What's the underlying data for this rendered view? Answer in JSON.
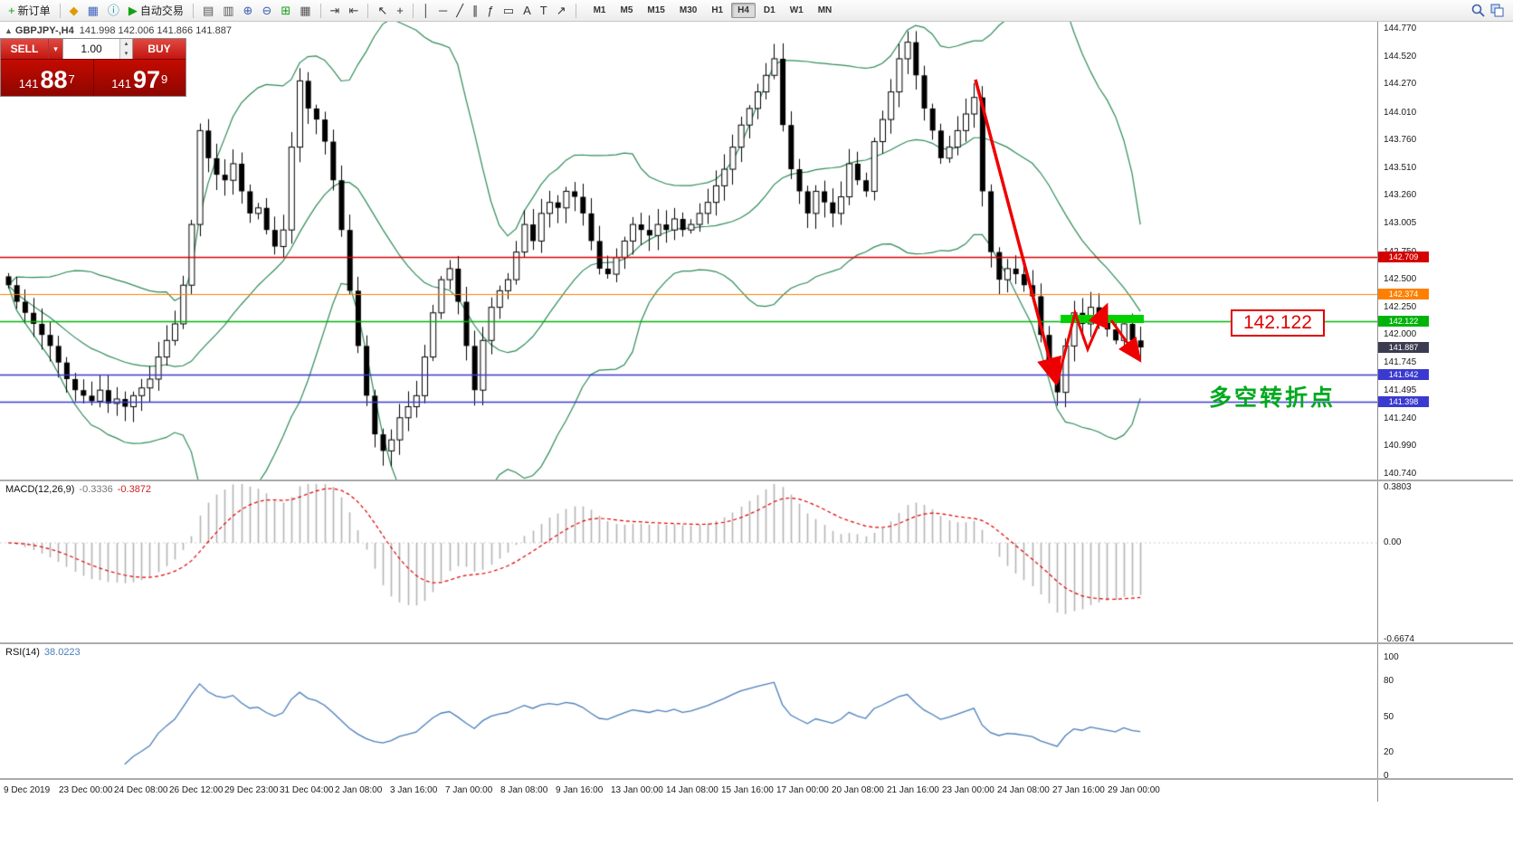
{
  "icons": {
    "chevron_down": "▾",
    "spin_up": "▴",
    "spin_down": "▾",
    "marker_up": "▲"
  },
  "toolbar": {
    "groups": [
      {
        "items": [
          {
            "name": "new-order",
            "glyph": "+",
            "color": "#14a014",
            "label": "新订单"
          }
        ]
      },
      {
        "items": [
          {
            "name": "market-watch",
            "glyph": "◆",
            "color": "#dc9c00"
          },
          {
            "name": "data-window",
            "glyph": "▦",
            "color": "#4066c0"
          },
          {
            "name": "navigator",
            "glyph": "ⓘ",
            "color": "#1890a0"
          },
          {
            "name": "autotrading",
            "glyph": "▶",
            "color": "#14a014",
            "label": "自动交易"
          }
        ]
      },
      {
        "items": [
          {
            "name": "chart-bars",
            "glyph": "▤",
            "color": "#555555"
          },
          {
            "name": "chart-candles",
            "glyph": "▥",
            "color": "#555555"
          },
          {
            "name": "zoom-in",
            "glyph": "⊕",
            "color": "#3a5fae"
          },
          {
            "name": "zoom-out",
            "glyph": "⊖",
            "color": "#3a5fae"
          },
          {
            "name": "tile-windows",
            "glyph": "⊞",
            "color": "#14a014"
          },
          {
            "name": "chart-window",
            "glyph": "▦",
            "color": "#555555"
          }
        ]
      },
      {
        "items": [
          {
            "name": "auto-scroll",
            "glyph": "⇥",
            "color": "#444444"
          },
          {
            "name": "chart-shift",
            "glyph": "⇤",
            "color": "#444444"
          }
        ]
      },
      {
        "items": [
          {
            "name": "cursor",
            "glyph": "↖",
            "color": "#333333"
          },
          {
            "name": "crosshair",
            "glyph": "+",
            "color": "#333333"
          }
        ]
      },
      {
        "items": [
          {
            "name": "vertical-line",
            "glyph": "│",
            "color": "#333333"
          },
          {
            "name": "horizontal-line",
            "glyph": "─",
            "color": "#333333"
          },
          {
            "name": "trendline",
            "glyph": "╱",
            "color": "#333333"
          },
          {
            "name": "equidistant-channel",
            "glyph": "∥",
            "color": "#333333"
          },
          {
            "name": "fibonacci",
            "glyph": "ƒ",
            "color": "#333333"
          },
          {
            "name": "shapes",
            "glyph": "▭",
            "color": "#333333"
          },
          {
            "name": "text",
            "glyph": "A",
            "color": "#333333"
          },
          {
            "name": "text-label",
            "glyph": "T",
            "color": "#333333"
          },
          {
            "name": "arrow-objects",
            "glyph": "↗",
            "color": "#333333"
          }
        ]
      }
    ],
    "timeframes": [
      "M1",
      "M5",
      "M15",
      "M30",
      "H1",
      "H4",
      "D1",
      "W1",
      "MN"
    ],
    "active_timeframe": "H4"
  },
  "chart": {
    "header": {
      "marker": "▲",
      "symbol": "GBPJPY-,H4",
      "ohlc": "141.998 142.006 141.866 141.887"
    }
  },
  "trade_panel": {
    "sell_label": "SELL",
    "buy_label": "BUY",
    "volume": "1.00",
    "sell_price_main": "141",
    "sell_price_big": "88",
    "sell_price_sup": "7",
    "buy_price_main": "141",
    "buy_price_big": "97",
    "buy_price_sup": "9"
  },
  "chart_data": {
    "type": "candlestick",
    "symbol": "GBPJPY-",
    "timeframe": "H4",
    "ylim": [
      140.74,
      144.77
    ],
    "price_axis": [
      "144.770",
      "144.520",
      "144.270",
      "144.010",
      "143.760",
      "143.510",
      "143.260",
      "143.005",
      "142.750",
      "142.500",
      "142.250",
      "142.000",
      "141.745",
      "141.495",
      "141.240",
      "140.990",
      "140.740"
    ],
    "dates": [
      "9 Dec 2019",
      "23 Dec 00:00",
      "24 Dec 08:00",
      "26 Dec 12:00",
      "29 Dec 23:00",
      "31 Dec 04:00",
      "2 Jan 08:00",
      "3 Jan 16:00",
      "7 Jan 00:00",
      "8 Jan 08:00",
      "9 Jan 16:00",
      "13 Jan 00:00",
      "14 Jan 08:00",
      "15 Jan 16:00",
      "17 Jan 00:00",
      "20 Jan 08:00",
      "21 Jan 16:00",
      "23 Jan 00:00",
      "24 Jan 08:00",
      "27 Jan 16:00",
      "29 Jan 00:00"
    ],
    "levels": [
      {
        "value": 142.709,
        "label": "142.709",
        "color": "#d40000",
        "width": 1.6
      },
      {
        "value": 142.374,
        "label": "142.374",
        "color": "#ff8000",
        "width": 1.2
      },
      {
        "value": 142.122,
        "label": "142.122",
        "color": "#00b30b",
        "width": 1.6
      },
      {
        "value": 141.642,
        "label": "141.642",
        "color": "#3a3ad0",
        "width": 1.4
      },
      {
        "value": 141.398,
        "label": "141.398",
        "color": "#3a3ad0",
        "width": 1.4
      }
    ],
    "current_price": {
      "value": 141.887,
      "label": "141.887",
      "color": "#3c3c50"
    },
    "closes": [
      142.45,
      142.3,
      142.2,
      142.1,
      142.0,
      141.9,
      141.75,
      141.6,
      141.5,
      141.45,
      141.4,
      141.5,
      141.38,
      141.42,
      141.35,
      141.45,
      141.52,
      141.6,
      141.8,
      141.95,
      142.1,
      142.45,
      143.0,
      143.85,
      143.6,
      143.45,
      143.4,
      143.55,
      143.3,
      143.1,
      143.15,
      142.95,
      142.8,
      142.95,
      143.7,
      144.3,
      144.05,
      143.95,
      143.75,
      143.4,
      142.95,
      142.4,
      141.9,
      141.45,
      141.1,
      140.95,
      141.05,
      141.25,
      141.35,
      141.45,
      141.8,
      142.2,
      142.5,
      142.6,
      142.3,
      141.9,
      141.5,
      141.95,
      142.25,
      142.4,
      142.5,
      142.75,
      143.0,
      142.85,
      143.1,
      143.2,
      143.15,
      143.3,
      143.25,
      143.1,
      142.85,
      142.6,
      142.55,
      142.7,
      142.85,
      143.0,
      142.95,
      142.9,
      143.0,
      142.95,
      143.05,
      142.95,
      143.0,
      143.1,
      143.2,
      143.35,
      143.5,
      143.7,
      143.9,
      144.05,
      144.2,
      144.35,
      144.5,
      143.9,
      143.5,
      143.3,
      143.1,
      143.3,
      143.2,
      143.1,
      143.25,
      143.55,
      143.4,
      143.3,
      143.75,
      143.95,
      144.2,
      144.5,
      144.65,
      144.35,
      144.05,
      143.85,
      143.6,
      143.7,
      143.85,
      144.0,
      144.15,
      143.3,
      142.75,
      142.5,
      142.6,
      142.55,
      142.45,
      142.35,
      142.0,
      141.75,
      141.48,
      141.9,
      142.2,
      142.1,
      142.25,
      142.15,
      142.05,
      141.95,
      142.1,
      141.95,
      141.887
    ],
    "bollinger": {
      "period": 20,
      "deviation": 2,
      "color": "#2e8b57"
    },
    "indicators": {
      "macd": {
        "label": "MACD(12,26,9)",
        "value_main": "-0.3336",
        "value_signal": "-0.3872",
        "scale": [
          "0.3803",
          "0.00",
          "-0.6674"
        ],
        "scale_values": [
          0.3803,
          0,
          -0.6674
        ]
      },
      "rsi": {
        "label": "RSI(14)",
        "value": "38.0223",
        "scale": [
          "100",
          "80",
          "50",
          "20",
          "0"
        ],
        "scale_values": [
          100,
          80,
          50,
          20,
          0
        ]
      }
    },
    "annotations": {
      "price_box": "142.122",
      "turning_point_text": "多空转折点"
    }
  }
}
